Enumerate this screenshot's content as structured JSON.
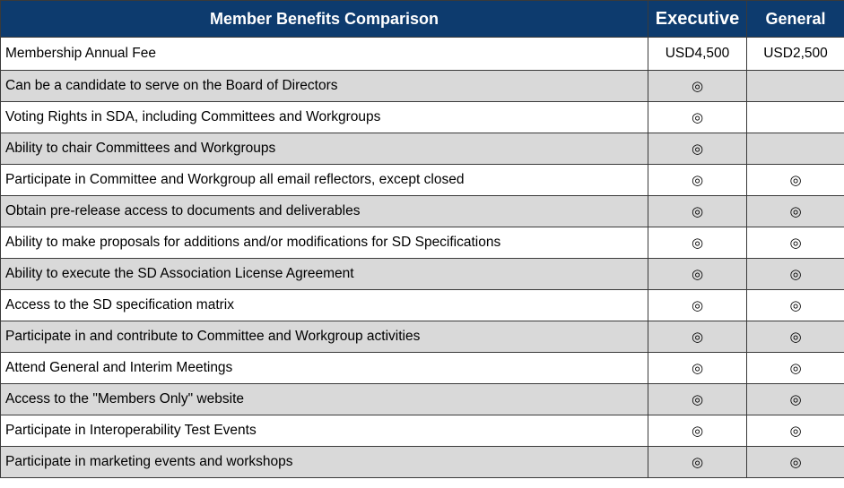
{
  "header": {
    "title": "Member Benefits Comparison",
    "executive": "Executive",
    "general": "General"
  },
  "fee_row": {
    "label": "Membership Annual Fee",
    "executive": "USD4,500",
    "general": "USD2,500"
  },
  "mark_icon": "double-circle-icon",
  "mark_glyph": "◎",
  "rows": [
    {
      "label": "Can be a candidate to serve on the Board of Directors",
      "executive": "◎",
      "general": ""
    },
    {
      "label": "Voting Rights in SDA, including Committees and Workgroups",
      "executive": "◎",
      "general": ""
    },
    {
      "label": "Ability to chair Committees and Workgroups",
      "executive": "◎",
      "general": ""
    },
    {
      "label": "Participate in Committee and Workgroup all email reflectors, except closed",
      "executive": "◎",
      "general": "◎"
    },
    {
      "label": "Obtain pre-release access to documents and deliverables",
      "executive": "◎",
      "general": "◎"
    },
    {
      "label": "Ability to make proposals for additions and/or modifications for SD Specifications",
      "executive": "◎",
      "general": "◎"
    },
    {
      "label": "Ability to execute the SD Association License Agreement",
      "executive": "◎",
      "general": "◎"
    },
    {
      "label": "Access to the SD specification matrix",
      "executive": "◎",
      "general": "◎"
    },
    {
      "label": "Participate in and contribute to Committee and Workgroup activities",
      "executive": "◎",
      "general": "◎"
    },
    {
      "label": "Attend General and Interim Meetings",
      "executive": "◎",
      "general": "◎"
    },
    {
      "label": "Access to the \"Members Only\" website",
      "executive": "◎",
      "general": "◎"
    },
    {
      "label": "Participate in Interoperability Test Events",
      "executive": "◎",
      "general": "◎"
    },
    {
      "label": "Participate in marketing events and workshops",
      "executive": "◎",
      "general": "◎"
    }
  ]
}
